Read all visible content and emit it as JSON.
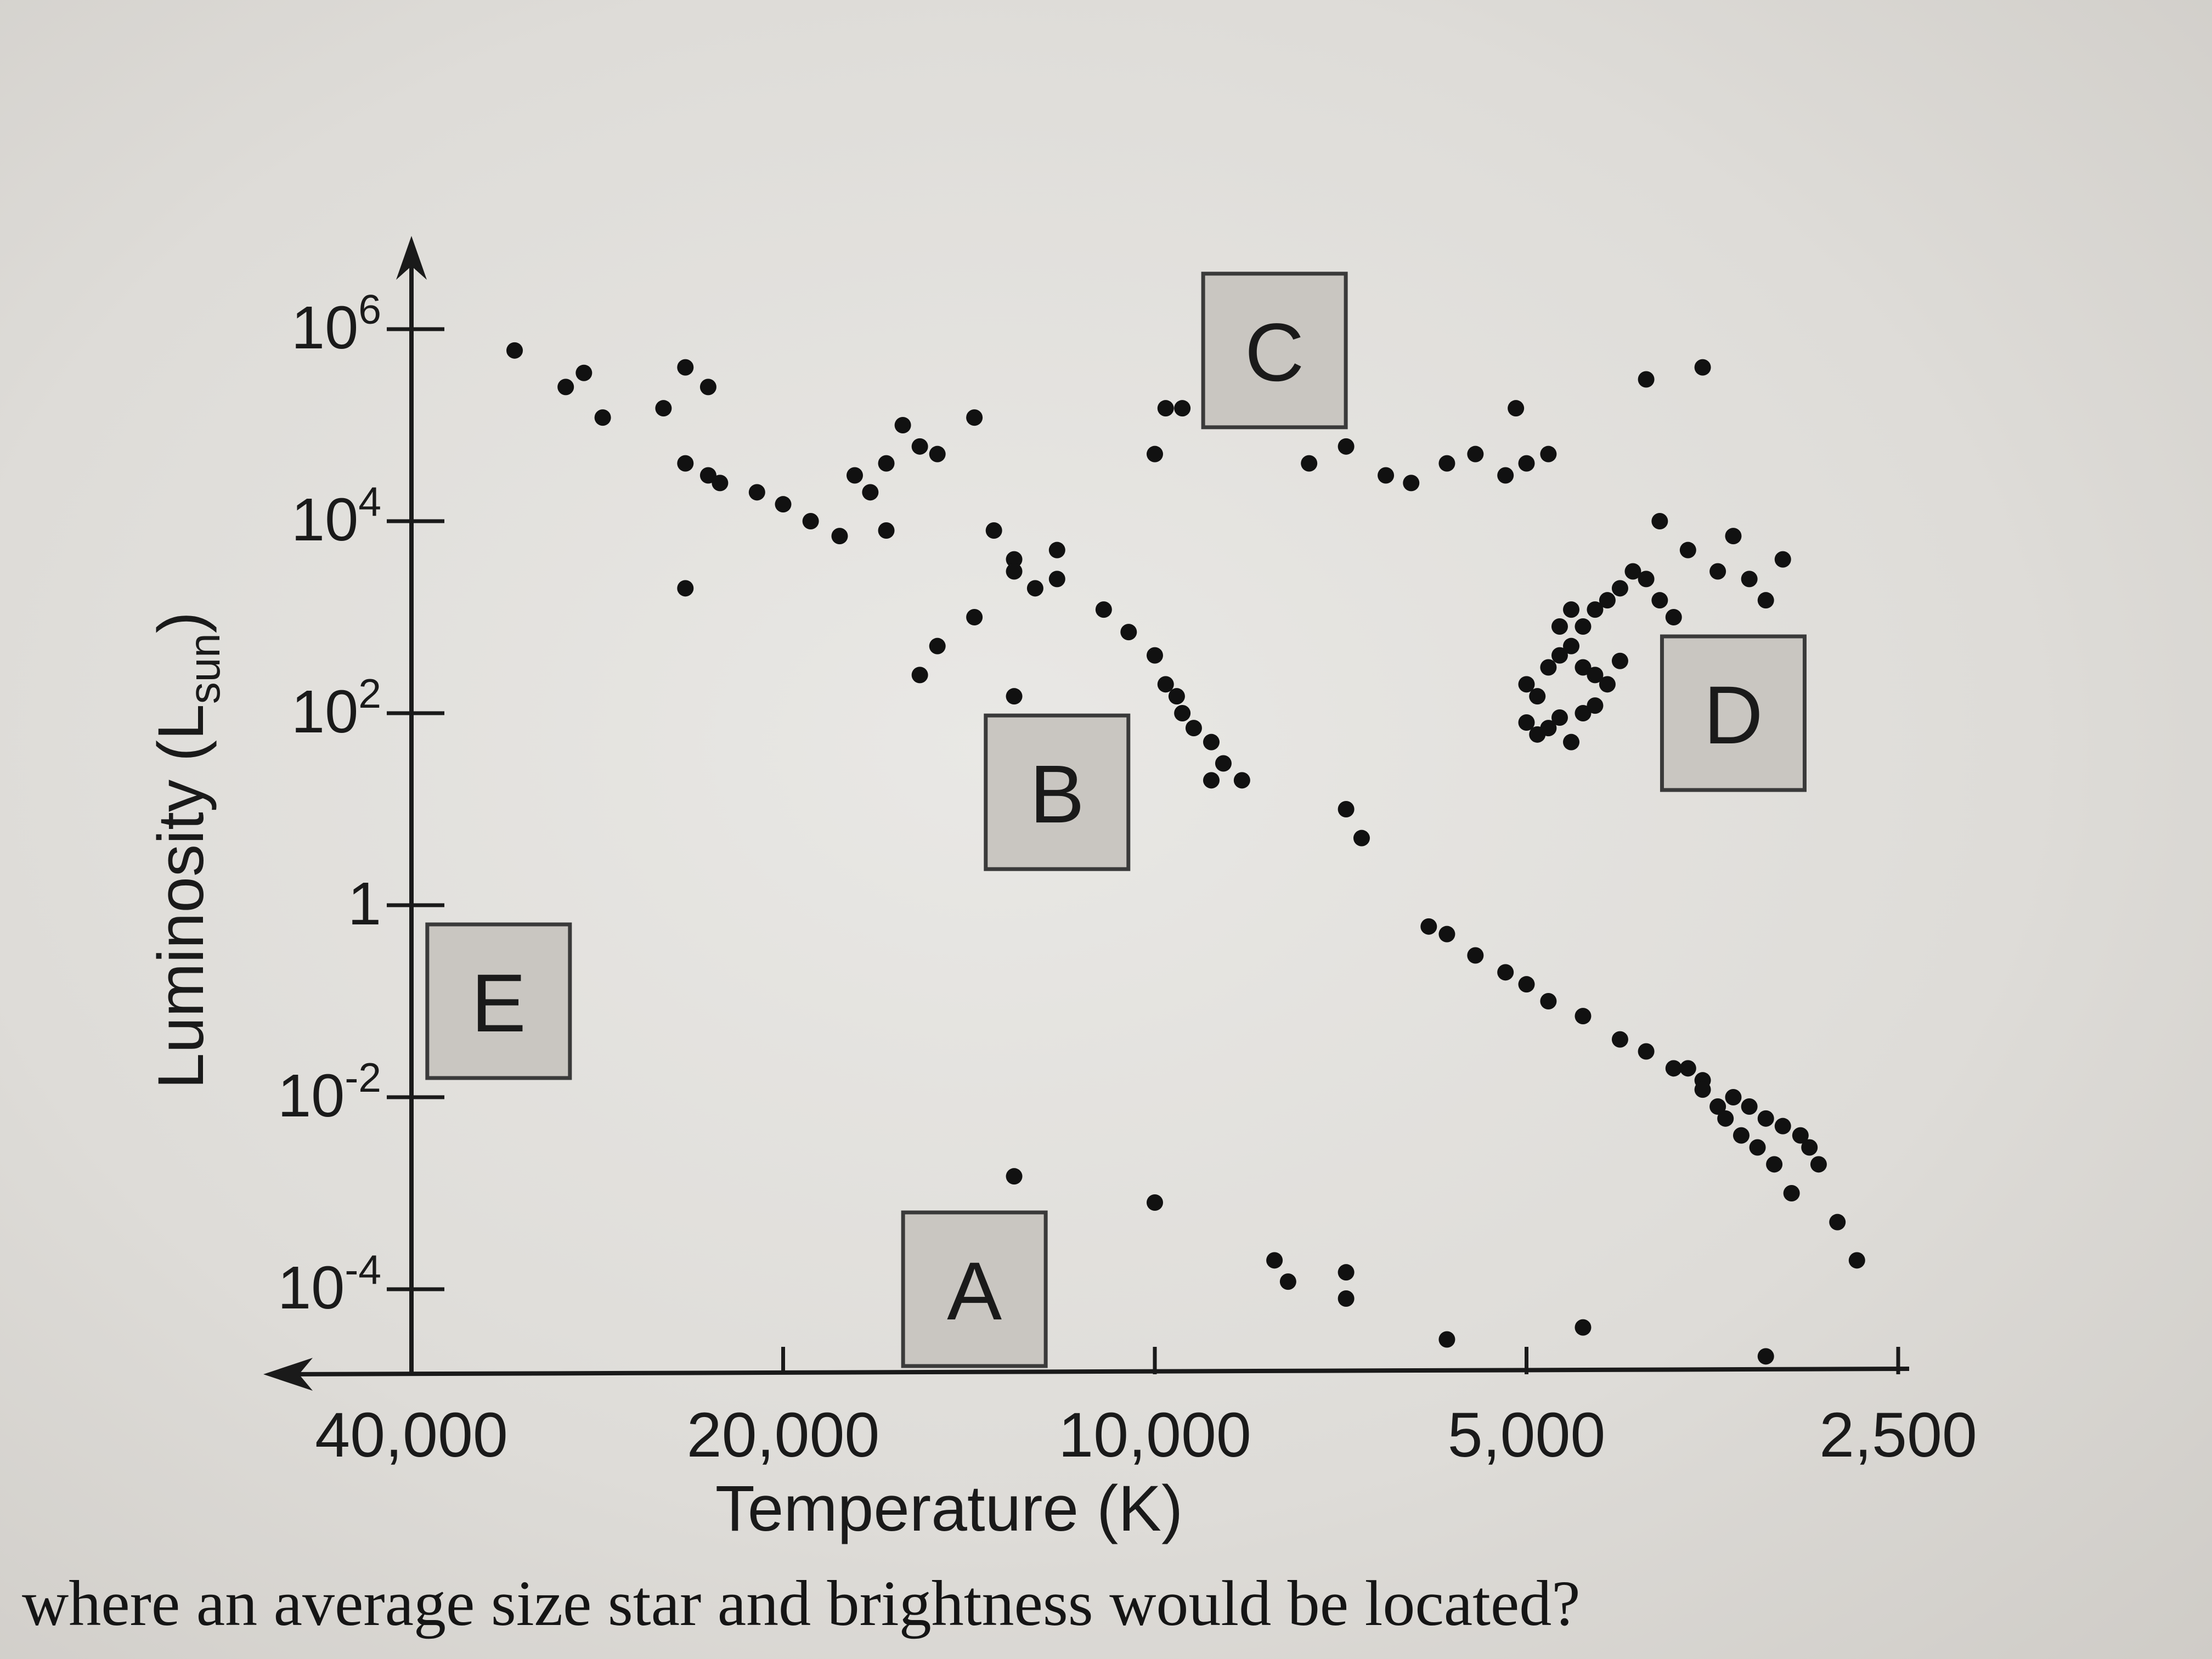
{
  "chart_data": {
    "type": "scatter",
    "xlabel": "Temperature (K)",
    "ylabel": "Luminosity (L",
    "ylabel_sub": "sun",
    "ylabel_end": ")",
    "x_scale": "log, reversed",
    "y_scale": "log",
    "xlim": [
      40000,
      2500
    ],
    "ylim": [
      1e-05,
      1000000
    ],
    "x_ticks": [
      {
        "value": 40000,
        "label": "40,000"
      },
      {
        "value": 20000,
        "label": "20,000"
      },
      {
        "value": 10000,
        "label": "10,000"
      },
      {
        "value": 5000,
        "label": "5,000"
      },
      {
        "value": 2500,
        "label": "2,500"
      }
    ],
    "y_ticks": [
      {
        "value": 1000000,
        "base": "10",
        "exp": "6"
      },
      {
        "value": 10000,
        "base": "10",
        "exp": "4"
      },
      {
        "value": 100,
        "base": "10",
        "exp": "2"
      },
      {
        "value": 1,
        "base": "1",
        "exp": ""
      },
      {
        "value": 0.01,
        "base": "10",
        "exp": "-2"
      },
      {
        "value": 0.0001,
        "base": "10",
        "exp": "-4"
      }
    ],
    "region_labels": [
      {
        "label": "A",
        "x": 14000,
        "y": 0.0001
      },
      {
        "label": "B",
        "x": 12000,
        "y": 15
      },
      {
        "label": "C",
        "x": 8000,
        "y": 600000
      },
      {
        "label": "D",
        "x": 3400,
        "y": 100
      },
      {
        "label": "E",
        "x": 34000,
        "y": 0.1
      }
    ],
    "points": [
      [
        33000,
        600000
      ],
      [
        30000,
        250000
      ],
      [
        29000,
        350000
      ],
      [
        28000,
        120000
      ],
      [
        25000,
        150000
      ],
      [
        24000,
        400000
      ],
      [
        23000,
        250000
      ],
      [
        24000,
        40000
      ],
      [
        23000,
        30000
      ],
      [
        22500,
        25000
      ],
      [
        21000,
        20000
      ],
      [
        20000,
        15000
      ],
      [
        19000,
        10000
      ],
      [
        18000,
        7000
      ],
      [
        17500,
        30000
      ],
      [
        17000,
        20000
      ],
      [
        16500,
        40000
      ],
      [
        16000,
        100000
      ],
      [
        15500,
        60000
      ],
      [
        15000,
        50000
      ],
      [
        14000,
        120000
      ],
      [
        13500,
        8000
      ],
      [
        13000,
        4000
      ],
      [
        12500,
        2000
      ],
      [
        12000,
        2500
      ],
      [
        11000,
        1200
      ],
      [
        10500,
        700
      ],
      [
        10000,
        400
      ],
      [
        9800,
        200
      ],
      [
        9600,
        150
      ],
      [
        9500,
        100
      ],
      [
        9300,
        70
      ],
      [
        9000,
        50
      ],
      [
        8800,
        30
      ],
      [
        8500,
        20
      ],
      [
        9500,
        150000
      ],
      [
        10000,
        50000
      ],
      [
        9800,
        150000
      ],
      [
        13000,
        3000
      ],
      [
        14000,
        1000
      ],
      [
        15000,
        500
      ],
      [
        16500,
        8000
      ],
      [
        12000,
        5000
      ],
      [
        24000,
        2000
      ],
      [
        15500,
        250
      ],
      [
        13000,
        150
      ],
      [
        9000,
        20
      ],
      [
        7000,
        10
      ],
      [
        6800,
        5
      ],
      [
        6000,
        0.6
      ],
      [
        5800,
        0.5
      ],
      [
        5500,
        0.3
      ],
      [
        5200,
        0.2
      ],
      [
        5000,
        0.15
      ],
      [
        4800,
        0.1
      ],
      [
        4500,
        0.07
      ],
      [
        4200,
        0.04
      ],
      [
        4000,
        0.03
      ],
      [
        3800,
        0.02
      ],
      [
        3600,
        0.015
      ],
      [
        3400,
        0.01
      ],
      [
        3300,
        0.008
      ],
      [
        3200,
        0.006
      ],
      [
        3100,
        0.005
      ],
      [
        3000,
        0.004
      ],
      [
        2950,
        0.003
      ],
      [
        2900,
        0.002
      ],
      [
        3050,
        0.001
      ],
      [
        2800,
        0.0005
      ],
      [
        3500,
        0.008
      ],
      [
        3450,
        0.006
      ],
      [
        3350,
        0.004
      ],
      [
        3250,
        0.003
      ],
      [
        3150,
        0.002
      ],
      [
        3700,
        0.02
      ],
      [
        3600,
        0.012
      ],
      [
        7500,
        40000
      ],
      [
        7000,
        60000
      ],
      [
        6500,
        30000
      ],
      [
        6200,
        25000
      ],
      [
        5800,
        40000
      ],
      [
        5500,
        50000
      ],
      [
        5200,
        30000
      ],
      [
        5000,
        40000
      ],
      [
        5100,
        150000
      ],
      [
        4800,
        50000
      ],
      [
        4000,
        300000
      ],
      [
        3600,
        400000
      ],
      [
        3900,
        10000
      ],
      [
        3700,
        5000
      ],
      [
        3500,
        3000
      ],
      [
        3400,
        7000
      ],
      [
        3300,
        2500
      ],
      [
        3200,
        1500
      ],
      [
        3100,
        4000
      ],
      [
        5000,
        200
      ],
      [
        4900,
        150
      ],
      [
        4800,
        300
      ],
      [
        4700,
        400
      ],
      [
        4600,
        500
      ],
      [
        4500,
        800
      ],
      [
        4400,
        1200
      ],
      [
        4300,
        1500
      ],
      [
        4200,
        2000
      ],
      [
        4100,
        3000
      ],
      [
        4000,
        2500
      ],
      [
        4700,
        800
      ],
      [
        4600,
        1200
      ],
      [
        4500,
        300
      ],
      [
        4400,
        250
      ],
      [
        4300,
        200
      ],
      [
        4200,
        350
      ],
      [
        5000,
        80
      ],
      [
        4900,
        60
      ],
      [
        4800,
        70
      ],
      [
        4700,
        90
      ],
      [
        4600,
        50
      ],
      [
        4500,
        100
      ],
      [
        4400,
        120
      ],
      [
        3800,
        1000
      ],
      [
        3900,
        1500
      ],
      [
        13000,
        0.0015
      ],
      [
        10000,
        0.0008
      ],
      [
        8000,
        0.0002
      ],
      [
        7800,
        0.00012
      ],
      [
        7000,
        0.00015
      ],
      [
        7000,
        8e-05
      ],
      [
        5800,
        3e-05
      ],
      [
        4500,
        4e-05
      ],
      [
        3200,
        2e-05
      ],
      [
        2700,
        0.0002
      ]
    ]
  },
  "question": "where an average size star and brightness would be located?"
}
